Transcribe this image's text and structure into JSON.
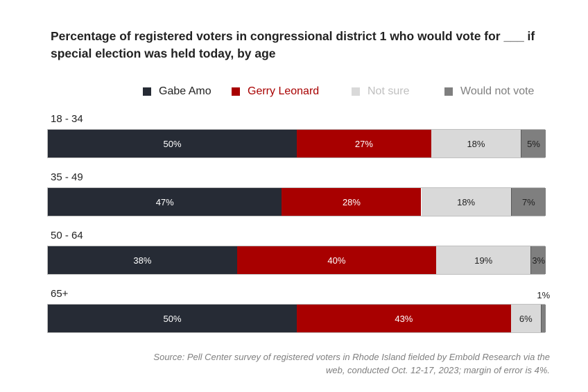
{
  "chart_data": {
    "type": "bar",
    "orientation": "horizontal",
    "stacked": true,
    "title": "Percentage of registered voters in congressional district 1 who would vote for ___ if special election was held today, by age",
    "categories": [
      "18 - 34",
      "35 - 49",
      "50 - 64",
      "65+"
    ],
    "series": [
      {
        "name": "Gabe Amo",
        "color": "#262b35",
        "text_color": "#ffffff",
        "values": [
          50,
          47,
          38,
          50
        ],
        "labels": [
          "50%",
          "47%",
          "38%",
          "50%"
        ]
      },
      {
        "name": "Gerry Leonard",
        "color": "#a80000",
        "text_color": "#ffffff",
        "values": [
          27,
          28,
          40,
          43
        ],
        "labels": [
          "27%",
          "28%",
          "40%",
          "43%"
        ]
      },
      {
        "name": "Not sure",
        "color": "#d9d9d9",
        "text_color": "#222222",
        "values": [
          18,
          18,
          19,
          6
        ],
        "labels": [
          "18%",
          "18%",
          "19%",
          "6%"
        ]
      },
      {
        "name": "Would not vote",
        "color": "#7f7f7f",
        "text_color": "#222222",
        "values": [
          5,
          7,
          3,
          1
        ],
        "labels": [
          "5%",
          "7%",
          "3%",
          "1%"
        ]
      }
    ],
    "legend_position": "top-right",
    "source": "Source: Pell Center survey of registered voters in Rhode Island fielded by Embold Research via the web, conducted Oct. 12-17, 2023; margin of error is 4%."
  }
}
